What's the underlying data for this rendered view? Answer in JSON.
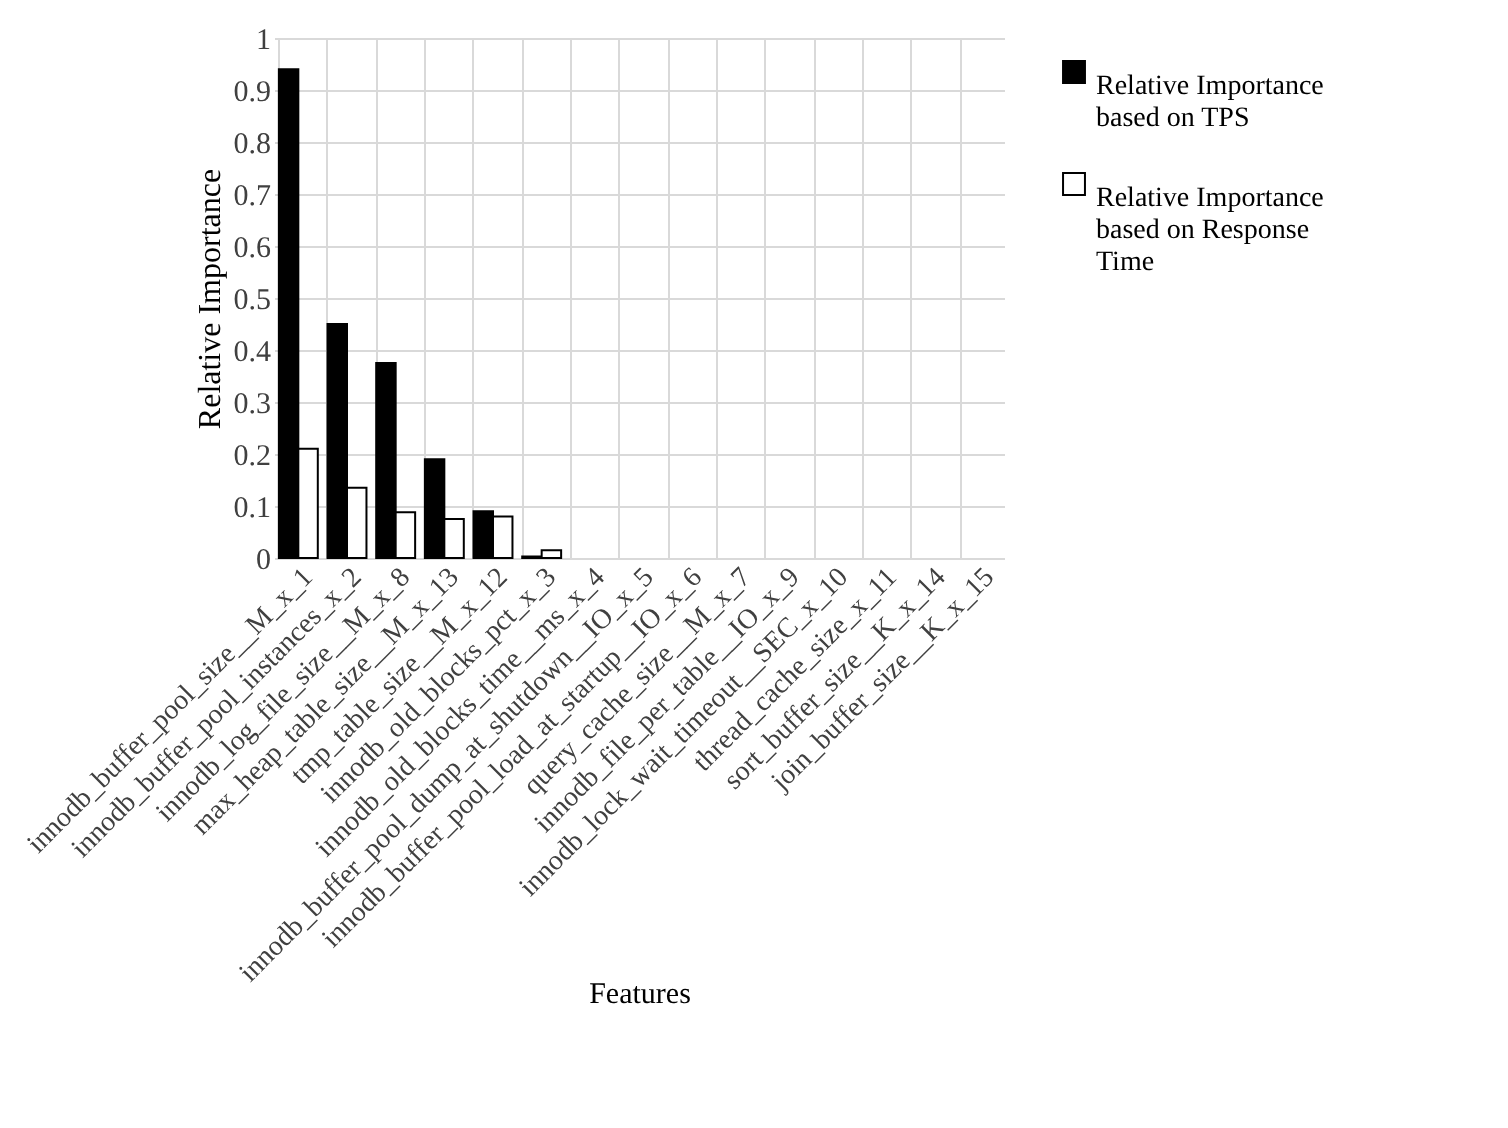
{
  "chart_data": {
    "type": "bar",
    "xlabel": "Features",
    "ylabel": "Relative Importance",
    "categories": [
      "innodb_buffer_pool_size__M_x_1",
      "innodb_buffer_pool_instances_x_2",
      "innodb_log_file_size__M_x_8",
      "max_heap_table_size__M_x_13",
      "tmp_table_size__M_x_12",
      "innodb_old_blocks_pct_x_3",
      "innodb_old_blocks_time__ms_x_4",
      "innodb_buffer_pool_dump_at_shutdown__IO_x_5",
      "innodb_buffer_pool_load_at_startup__IO_x_6",
      "query_cache_size__M_x_7",
      "innodb_file_per_table__IO_x_9",
      "innodb_lock_wait_timeout__SEC_x_10",
      "thread_cache_size_x_11",
      "sort_buffer_size__K_x_14",
      "join_buffer_size__K_x_15"
    ],
    "series": [
      {
        "name": "Relative Importance based on TPS",
        "color": "#000000",
        "values": [
          0.94,
          0.45,
          0.375,
          0.19,
          0.09,
          0.003,
          0,
          0,
          0,
          0,
          0,
          0,
          0,
          0,
          0
        ]
      },
      {
        "name": "Relative Importance based on Response Time",
        "color": "#ffffff",
        "values": [
          0.21,
          0.135,
          0.088,
          0.075,
          0.08,
          0.015,
          0,
          0,
          0,
          0,
          0,
          0,
          0,
          0,
          0
        ]
      }
    ],
    "ylim": [
      0,
      1
    ],
    "yticks": [
      0,
      0.1,
      0.2,
      0.3,
      0.4,
      0.5,
      0.6,
      0.7,
      0.8,
      0.9,
      1
    ],
    "grid": true,
    "legend": "right"
  }
}
